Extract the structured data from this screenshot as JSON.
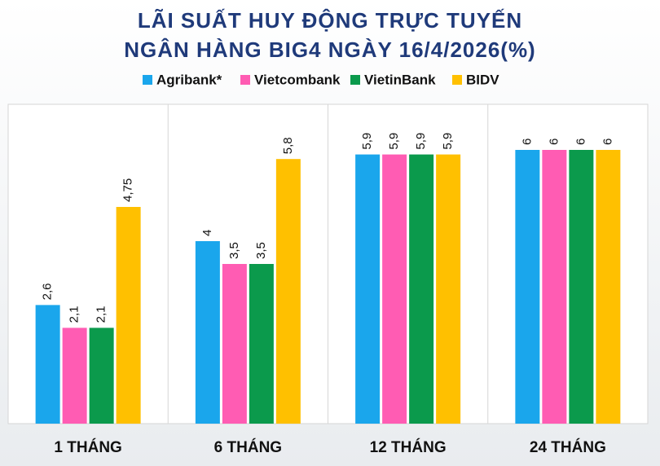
{
  "chart_data": {
    "type": "bar",
    "title": "LÃI SUẤT HUY ĐỘNG TRỰC TUYẾN",
    "subtitle": "NGÂN HÀNG BIG4 NGÀY 16/4/2026(%)",
    "categories": [
      "1 THÁNG",
      "6  THÁNG",
      "12 THÁNG",
      "24 THÁNG"
    ],
    "series": [
      {
        "name": "Agribank*",
        "color": "#1aa6ec",
        "values": [
          2.6,
          4,
          5.9,
          6
        ],
        "value_labels": [
          "2,6",
          "4",
          "5,9",
          "6"
        ]
      },
      {
        "name": "Vietcombank",
        "color": "#ff5cb3",
        "values": [
          2.1,
          3.5,
          5.9,
          6
        ],
        "value_labels": [
          "2,1",
          "3,5",
          "5,9",
          "6"
        ]
      },
      {
        "name": "VietinBank",
        "color": "#0b9a4c",
        "values": [
          2.1,
          3.5,
          5.9,
          6
        ],
        "value_labels": [
          "2,1",
          "3,5",
          "5,9",
          "6"
        ]
      },
      {
        "name": "BIDV",
        "color": "#ffc000",
        "values": [
          4.75,
          5.8,
          5.9,
          6
        ],
        "value_labels": [
          "4,75",
          "5,8",
          "5,9",
          "6"
        ]
      }
    ],
    "ylim": [
      0,
      7
    ]
  }
}
